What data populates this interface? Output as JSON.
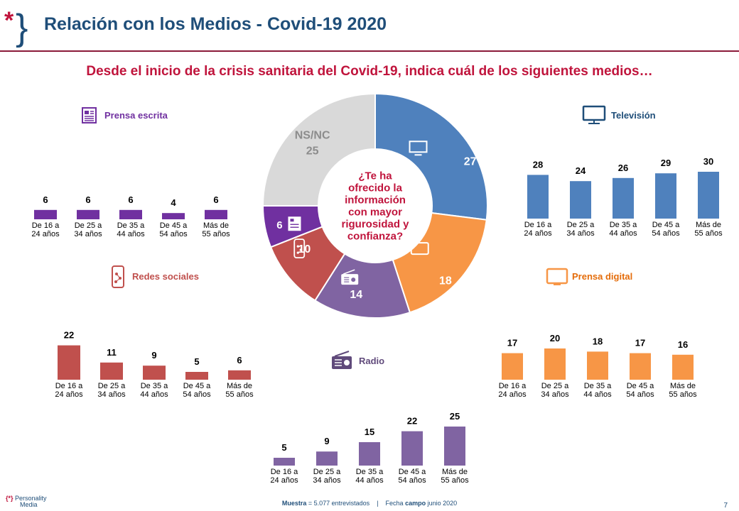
{
  "header": {
    "title": "Relación con los Medios - Covid-19 2020"
  },
  "question": "Desde el inicio de la crisis sanitaria del Covid-19, indica cuál de los siguientes medios…",
  "colors": {
    "title": "#1f4e79",
    "accent": "#c0143c",
    "tv": "#4f81bd",
    "digital": "#f79646",
    "radio": "#8064a2",
    "social": "#c0504d",
    "press": "#7030a0",
    "nsnc": "#d9d9d9"
  },
  "footer": {
    "sample_label": "Muestra",
    "sample_text": "= 5.077 entrevistados",
    "separator": "|",
    "date_pre": "Fecha",
    "date_bold": "campo",
    "date_post": "junio 2020",
    "page": "7"
  },
  "brand": {
    "mark": "{*}",
    "line1": "Personality",
    "line2": "Media"
  },
  "chart_data": [
    {
      "type": "pie",
      "center_text": [
        "¿Te ha",
        "ofrecido la",
        "información",
        "con mayor",
        "rigurosidad y",
        "confianza?"
      ],
      "slices": [
        {
          "label": "Televisión",
          "value": 27,
          "color": "#4f81bd",
          "icon": "tv-icon"
        },
        {
          "label": "Prensa digital",
          "value": 18,
          "color": "#f79646",
          "icon": "laptop-icon"
        },
        {
          "label": "Radio",
          "value": 14,
          "color": "#8064a2",
          "icon": "radio-icon"
        },
        {
          "label": "Redes sociales",
          "value": 10,
          "color": "#c0504d",
          "icon": "smartphone-icon"
        },
        {
          "label": "Prensa escrita",
          "value": 6,
          "color": "#7030a0",
          "icon": "newspaper-icon"
        },
        {
          "label": "NS/NC",
          "value": 25,
          "color": "#d9d9d9",
          "icon": ""
        }
      ]
    },
    {
      "type": "bar",
      "id": "prensa-escrita",
      "title": "Prensa escrita",
      "color": "#7030a0",
      "icon": "newspaper-icon",
      "categories": [
        [
          "De 16 a",
          "24 años"
        ],
        [
          "De 25 a",
          "34 años"
        ],
        [
          "De 35 a",
          "44 años"
        ],
        [
          "De 45 a",
          "54 años"
        ],
        [
          "Más de",
          "55 años"
        ]
      ],
      "values": [
        6,
        6,
        6,
        4,
        6
      ]
    },
    {
      "type": "bar",
      "id": "television",
      "title": "Televisión",
      "color": "#4f81bd",
      "icon": "tv-icon",
      "categories": [
        [
          "De 16 a",
          "24 años"
        ],
        [
          "De 25 a",
          "34 años"
        ],
        [
          "De 35 a",
          "44 años"
        ],
        [
          "De 45 a",
          "54 años"
        ],
        [
          "Más de",
          "55 años"
        ]
      ],
      "values": [
        28,
        24,
        26,
        29,
        30
      ]
    },
    {
      "type": "bar",
      "id": "redes-sociales",
      "title": "Redes sociales",
      "color": "#c0504d",
      "icon": "smartphone-icon",
      "categories": [
        [
          "De 16 a",
          "24 años"
        ],
        [
          "De 25 a",
          "34 años"
        ],
        [
          "De 35 a",
          "44 años"
        ],
        [
          "De 45 a",
          "54 años"
        ],
        [
          "Más de",
          "55 años"
        ]
      ],
      "values": [
        22,
        11,
        9,
        5,
        6
      ]
    },
    {
      "type": "bar",
      "id": "prensa-digital",
      "title": "Prensa digital",
      "color": "#f79646",
      "icon": "laptop-icon",
      "categories": [
        [
          "De 16 a",
          "24 años"
        ],
        [
          "De 25 a",
          "34 años"
        ],
        [
          "De 35 a",
          "44 años"
        ],
        [
          "De 45 a",
          "54 años"
        ],
        [
          "Más de",
          "55 años"
        ]
      ],
      "values": [
        17,
        20,
        18,
        17,
        16
      ]
    },
    {
      "type": "bar",
      "id": "radio",
      "title": "Radio",
      "color": "#8064a2",
      "icon": "radio-icon",
      "categories": [
        [
          "De 16 a",
          "24 años"
        ],
        [
          "De 25 a",
          "34 años"
        ],
        [
          "De 35 a",
          "44 años"
        ],
        [
          "De 45 a",
          "54 años"
        ],
        [
          "Más de",
          "55 años"
        ]
      ],
      "values": [
        5,
        9,
        15,
        22,
        25
      ]
    }
  ]
}
